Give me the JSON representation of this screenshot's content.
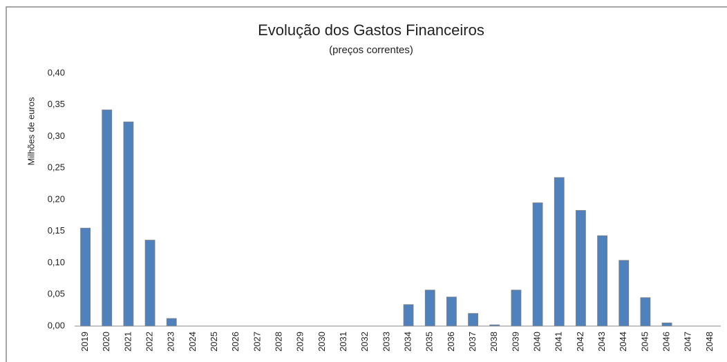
{
  "chart_data": {
    "type": "bar",
    "title": "Evolução dos Gastos Financeiros",
    "subtitle": "(preços correntes)",
    "y_label": "Milhões de euros",
    "categories": [
      "2019",
      "2020",
      "2021",
      "2022",
      "2023",
      "2024",
      "2025",
      "2026",
      "2027",
      "2028",
      "2029",
      "2030",
      "2031",
      "2032",
      "2033",
      "2034",
      "2035",
      "2036",
      "2037",
      "2038",
      "2039",
      "2040",
      "2041",
      "2042",
      "2043",
      "2044",
      "2045",
      "2046",
      "2047",
      "2048"
    ],
    "values": [
      0.155,
      0.342,
      0.323,
      0.136,
      0.012,
      0,
      0,
      0,
      0,
      0,
      0,
      0,
      0,
      0,
      0,
      0.034,
      0.057,
      0.046,
      0.02,
      0.002,
      0.057,
      0.195,
      0.235,
      0.183,
      0.143,
      0.104,
      0.045,
      0.005,
      0,
      0
    ],
    "color": "#4f81bd",
    "ylim": [
      0,
      0.4
    ],
    "yticks": [
      {
        "value": 0,
        "label": "0,00"
      },
      {
        "value": 0.05,
        "label": "0,05"
      },
      {
        "value": 0.1,
        "label": "0,10"
      },
      {
        "value": 0.15,
        "label": "0,15"
      },
      {
        "value": 0.2,
        "label": "0,20"
      },
      {
        "value": 0.25,
        "label": "0,25"
      },
      {
        "value": 0.3,
        "label": "0,30"
      },
      {
        "value": 0.35,
        "label": "0,35"
      },
      {
        "value": 0.4,
        "label": "0,40"
      }
    ],
    "grid": false
  }
}
